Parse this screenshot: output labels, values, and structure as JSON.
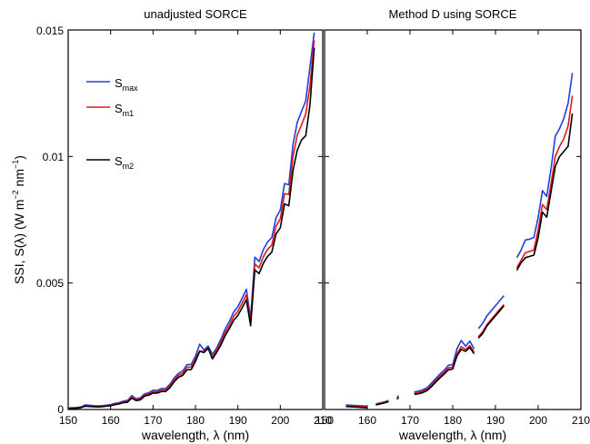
{
  "figure": {
    "ylabel_prefix": "SSI,  S(λ)    (W m",
    "ylabel_exp1": "−2",
    "ylabel_mid": " nm",
    "ylabel_exp2": "−1",
    "ylabel_suffix": ")"
  },
  "legend": {
    "s_max_main": "S",
    "s_max_sub": "max",
    "s_m1_main": "S",
    "s_m1_sub": "m1",
    "s_m2_main": "S",
    "s_m2_sub": "m2"
  },
  "colors": {
    "s_max": "#1f3fe0",
    "s_m1": "#e01818",
    "s_m2": "#000000"
  },
  "chart_data": [
    {
      "type": "line",
      "title": "unadjusted SORCE",
      "xlabel": "wavelength, λ (nm)",
      "ylabel": "SSI,  S(λ)    (W m−2 nm−1)",
      "xlim": [
        150,
        210
      ],
      "ylim": [
        0,
        0.015
      ],
      "x_ticks": [
        150,
        160,
        170,
        180,
        190,
        200,
        210
      ],
      "y_ticks": [
        0,
        0.005,
        0.01,
        0.015
      ],
      "y_tick_labels": [
        "0",
        "0.005",
        "0.01",
        "0.015"
      ],
      "grid": false,
      "legend_position": "top-left",
      "series": [
        {
          "name": "S_max",
          "color": "#1f3fe0",
          "x": [
            150,
            151,
            152,
            153,
            154,
            155,
            156,
            157,
            158,
            159,
            160,
            161,
            162,
            163,
            164,
            165,
            166,
            167,
            168,
            169,
            170,
            171,
            172,
            173,
            174,
            175,
            176,
            177,
            178,
            179,
            180,
            181,
            182,
            183,
            184,
            185,
            186,
            187,
            188,
            189,
            190,
            191,
            192,
            193,
            194,
            195,
            196,
            197,
            198,
            199,
            200,
            201,
            202,
            203,
            204,
            205,
            206,
            207,
            208
          ],
          "y": [
            6e-05,
            7e-05,
            8e-05,
            0.0001,
            0.00018,
            0.00017,
            0.00015,
            0.00014,
            0.00015,
            0.00017,
            0.00019,
            0.00024,
            0.00027,
            0.00033,
            0.00036,
            0.00055,
            0.00042,
            0.00046,
            0.00062,
            0.00066,
            0.00076,
            0.00075,
            0.00083,
            0.00083,
            0.001,
            0.00125,
            0.00143,
            0.00152,
            0.00177,
            0.00178,
            0.00211,
            0.00258,
            0.00235,
            0.00251,
            0.00218,
            0.00243,
            0.00278,
            0.00318,
            0.00348,
            0.00385,
            0.00406,
            0.0044,
            0.00475,
            0.0036,
            0.00602,
            0.00585,
            0.00632,
            0.00662,
            0.0068,
            0.00758,
            0.00788,
            0.00893,
            0.00888,
            0.01048,
            0.01135,
            0.01178,
            0.0122,
            0.01355,
            0.0149
          ]
        },
        {
          "name": "S_m1",
          "color": "#e01818",
          "x": [
            150,
            151,
            152,
            153,
            154,
            155,
            156,
            157,
            158,
            159,
            160,
            161,
            162,
            163,
            164,
            165,
            166,
            167,
            168,
            169,
            170,
            171,
            172,
            173,
            174,
            175,
            176,
            177,
            178,
            179,
            180,
            181,
            182,
            183,
            184,
            185,
            186,
            187,
            188,
            189,
            190,
            191,
            192,
            193,
            194,
            195,
            196,
            197,
            198,
            199,
            200,
            201,
            202,
            203,
            204,
            205,
            206,
            207,
            208
          ],
          "y": [
            4e-05,
            5e-05,
            6e-05,
            8e-05,
            0.00015,
            0.00014,
            0.00013,
            0.00012,
            0.00013,
            0.00015,
            0.00017,
            0.00021,
            0.00024,
            0.0003,
            0.00032,
            0.0005,
            0.00038,
            0.00042,
            0.00057,
            0.00061,
            0.0007,
            0.0007,
            0.00077,
            0.00077,
            0.00094,
            0.00117,
            0.00135,
            0.00143,
            0.00167,
            0.00168,
            0.00201,
            0.00232,
            0.00228,
            0.00244,
            0.00205,
            0.00236,
            0.00266,
            0.00304,
            0.00333,
            0.00368,
            0.00388,
            0.0042,
            0.00454,
            0.00345,
            0.00575,
            0.0056,
            0.00604,
            0.00633,
            0.0065,
            0.00725,
            0.00753,
            0.00853,
            0.0085,
            0.01,
            0.01085,
            0.01125,
            0.01168,
            0.0128,
            0.0146
          ]
        },
        {
          "name": "S_m2",
          "color": "#000000",
          "x": [
            150,
            151,
            152,
            153,
            154,
            155,
            156,
            157,
            158,
            159,
            160,
            161,
            162,
            163,
            164,
            165,
            166,
            167,
            168,
            169,
            170,
            171,
            172,
            173,
            174,
            175,
            176,
            177,
            178,
            179,
            180,
            181,
            182,
            183,
            184,
            185,
            186,
            187,
            188,
            189,
            190,
            191,
            192,
            193,
            194,
            195,
            196,
            197,
            198,
            199,
            200,
            201,
            202,
            203,
            204,
            205,
            206,
            207,
            208
          ],
          "y": [
            3e-05,
            4e-05,
            5e-05,
            7e-05,
            0.00013,
            0.00012,
            0.00011,
            0.0001,
            0.00011,
            0.00013,
            0.00015,
            0.00019,
            0.00022,
            0.00027,
            0.00029,
            0.00045,
            0.00035,
            0.00038,
            0.00053,
            0.00057,
            0.00065,
            0.00065,
            0.00071,
            0.00071,
            0.00087,
            0.0011,
            0.00127,
            0.00135,
            0.00157,
            0.00158,
            0.0019,
            0.0023,
            0.00225,
            0.00242,
            0.002,
            0.00226,
            0.00255,
            0.00292,
            0.0032,
            0.00352,
            0.00372,
            0.00402,
            0.00434,
            0.00331,
            0.00552,
            0.00537,
            0.00578,
            0.00605,
            0.00622,
            0.00694,
            0.00718,
            0.00813,
            0.00805,
            0.00945,
            0.01025,
            0.01065,
            0.01082,
            0.01205,
            0.0143
          ]
        }
      ]
    },
    {
      "type": "line",
      "title": "Method D using SORCE",
      "xlabel": "wavelength, λ (nm)",
      "xlim": [
        150,
        210
      ],
      "ylim": [
        0,
        0.015
      ],
      "x_ticks": [
        150,
        160,
        170,
        180,
        190,
        200,
        210
      ],
      "grid": false,
      "series": [
        {
          "name": "S_max",
          "color": "#1f3fe0",
          "segments": [
            {
              "x": [
                155,
                156,
                157,
                158,
                159,
                160
              ],
              "y": [
                0.00018,
                0.00017,
                0.00016,
                0.00015,
                0.00014,
                0.00013
              ]
            },
            {
              "x": [
                162,
                163,
                164,
                165
              ],
              "y": [
                0.00022,
                0.00026,
                0.0003,
                0.00036
              ]
            },
            {
              "x": [
                167,
                167.3
              ],
              "y": [
                0.00045,
                0.00055
              ]
            },
            {
              "x": [
                171,
                172,
                173,
                174,
                175,
                176,
                177,
                178,
                179,
                180,
                181,
                182,
                183,
                184,
                185
              ],
              "y": [
                0.0007,
                0.00072,
                0.00078,
                0.00086,
                0.00104,
                0.00122,
                0.0014,
                0.00155,
                0.00175,
                0.00178,
                0.0024,
                0.00273,
                0.0025,
                0.0027,
                0.0024
              ]
            },
            {
              "x": [
                186,
                187,
                188,
                189,
                190,
                191,
                192
              ],
              "y": [
                0.0032,
                0.0034,
                0.0037,
                0.0039,
                0.0041,
                0.0043,
                0.0045
              ]
            },
            {
              "x": [
                195,
                196,
                197,
                198,
                199,
                200,
                201,
                202,
                203,
                204,
                205,
                206,
                207,
                208
              ],
              "y": [
                0.006,
                0.0063,
                0.0067,
                0.00673,
                0.0068,
                0.0076,
                0.00865,
                0.00842,
                0.0095,
                0.0108,
                0.0111,
                0.0115,
                0.0121,
                0.0133
              ]
            }
          ]
        },
        {
          "name": "S_m1",
          "color": "#e01818",
          "segments": [
            {
              "x": [
                155,
                156,
                157,
                158,
                159,
                160
              ],
              "y": [
                0.00015,
                0.00014,
                0.00013,
                0.00012,
                0.00011,
                0.0001
              ]
            },
            {
              "x": [
                162,
                163,
                164,
                165
              ],
              "y": [
                0.0002,
                0.00024,
                0.00028,
                0.00034
              ]
            },
            {
              "x": [
                167,
                167.3
              ],
              "y": [
                0.00043,
                0.00052
              ]
            },
            {
              "x": [
                171,
                172,
                173,
                174,
                175,
                176,
                177,
                178,
                179,
                180,
                181,
                182,
                183,
                184,
                185
              ],
              "y": [
                0.00065,
                0.00067,
                0.00073,
                0.0008,
                0.00097,
                0.00115,
                0.00132,
                0.00147,
                0.00165,
                0.00168,
                0.0022,
                0.00248,
                0.00238,
                0.00252,
                0.00228
              ]
            },
            {
              "x": [
                186,
                187,
                188,
                189,
                190,
                191,
                192
              ],
              "y": [
                0.00288,
                0.00307,
                0.00336,
                0.00356,
                0.00376,
                0.00396,
                0.00415
              ]
            },
            {
              "x": [
                195,
                196,
                197,
                198,
                199,
                200,
                201,
                202,
                203,
                204,
                205,
                206,
                207,
                208
              ],
              "y": [
                0.0056,
                0.0059,
                0.0062,
                0.00625,
                0.0063,
                0.0071,
                0.0081,
                0.0079,
                0.0089,
                0.01,
                0.0104,
                0.0107,
                0.0112,
                0.0124
              ]
            }
          ]
        },
        {
          "name": "S_m2",
          "color": "#000000",
          "segments": [
            {
              "x": [
                155,
                156,
                157,
                158,
                159,
                160
              ],
              "y": [
                0.00012,
                0.00011,
                0.0001,
                9e-05,
                8e-05,
                7e-05
              ]
            },
            {
              "x": [
                162,
                163,
                164,
                165
              ],
              "y": [
                0.00018,
                0.00022,
                0.00026,
                0.00031
              ]
            },
            {
              "x": [
                167,
                167.3
              ],
              "y": [
                0.0004,
                0.00048
              ]
            },
            {
              "x": [
                171,
                172,
                173,
                174,
                175,
                176,
                177,
                178,
                179,
                180,
                181,
                182,
                183,
                184,
                185
              ],
              "y": [
                0.0006,
                0.00062,
                0.00067,
                0.00075,
                0.0009,
                0.00108,
                0.00125,
                0.0014,
                0.00157,
                0.0016,
                0.00212,
                0.00238,
                0.0023,
                0.00245,
                0.0022
              ]
            },
            {
              "x": [
                186,
                187,
                188,
                189,
                190,
                191,
                192
              ],
              "y": [
                0.00282,
                0.003,
                0.0033,
                0.0035,
                0.0037,
                0.0039,
                0.0041
              ]
            },
            {
              "x": [
                195,
                196,
                197,
                198,
                199,
                200,
                201,
                202,
                203,
                204,
                205,
                206,
                207,
                208
              ],
              "y": [
                0.0055,
                0.0058,
                0.006,
                0.00605,
                0.0061,
                0.0068,
                0.0078,
                0.0076,
                0.0086,
                0.0096,
                0.01,
                0.0102,
                0.0104,
                0.0117
              ]
            }
          ]
        }
      ]
    }
  ]
}
